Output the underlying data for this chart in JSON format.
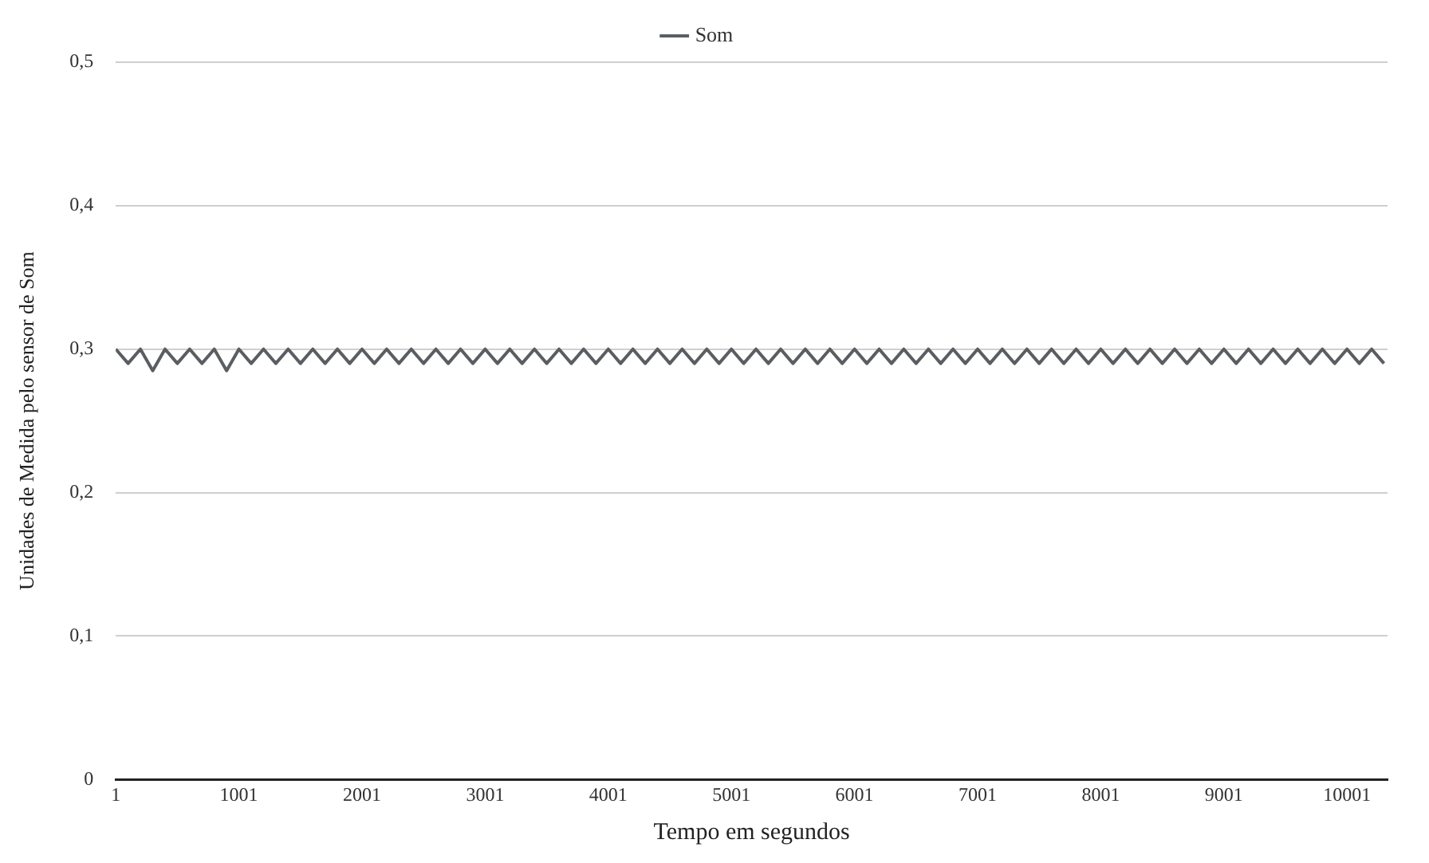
{
  "chart_data": {
    "type": "line",
    "xlabel": "Tempo em segundos",
    "ylabel": "Unidades de Medida pelo sensor de Som",
    "x": [
      1,
      101,
      201,
      301,
      401,
      501,
      601,
      701,
      801,
      901,
      1001,
      1101,
      1201,
      1301,
      1401,
      1501,
      1601,
      1701,
      1801,
      1901,
      2001,
      2101,
      2201,
      2301,
      2401,
      2501,
      2601,
      2701,
      2801,
      2901,
      3001,
      3101,
      3201,
      3301,
      3401,
      3501,
      3601,
      3701,
      3801,
      3901,
      4001,
      4101,
      4201,
      4301,
      4401,
      4501,
      4601,
      4701,
      4801,
      4901,
      5001,
      5101,
      5201,
      5301,
      5401,
      5501,
      5601,
      5701,
      5801,
      5901,
      6001,
      6101,
      6201,
      6301,
      6401,
      6501,
      6601,
      6701,
      6801,
      6901,
      7001,
      7101,
      7201,
      7301,
      7401,
      7501,
      7601,
      7701,
      7801,
      7901,
      8001,
      8101,
      8201,
      8301,
      8401,
      8501,
      8601,
      8701,
      8801,
      8901,
      9001,
      9101,
      9201,
      9301,
      9401,
      9501,
      9601,
      9701,
      9801,
      9901,
      10001,
      10101,
      10201,
      10301
    ],
    "series": [
      {
        "name": "Som",
        "color": "#5a5e63",
        "values": [
          0.3,
          0.29,
          0.3,
          0.285,
          0.3,
          0.29,
          0.3,
          0.29,
          0.3,
          0.285,
          0.3,
          0.29,
          0.3,
          0.29,
          0.3,
          0.29,
          0.3,
          0.29,
          0.3,
          0.29,
          0.3,
          0.29,
          0.3,
          0.29,
          0.3,
          0.29,
          0.3,
          0.29,
          0.3,
          0.29,
          0.3,
          0.29,
          0.3,
          0.29,
          0.3,
          0.29,
          0.3,
          0.29,
          0.3,
          0.29,
          0.3,
          0.29,
          0.3,
          0.29,
          0.3,
          0.29,
          0.3,
          0.29,
          0.3,
          0.29,
          0.3,
          0.29,
          0.3,
          0.29,
          0.3,
          0.29,
          0.3,
          0.29,
          0.3,
          0.29,
          0.3,
          0.29,
          0.3,
          0.29,
          0.3,
          0.29,
          0.3,
          0.29,
          0.3,
          0.29,
          0.3,
          0.29,
          0.3,
          0.29,
          0.3,
          0.29,
          0.3,
          0.29,
          0.3,
          0.29,
          0.3,
          0.29,
          0.3,
          0.29,
          0.3,
          0.29,
          0.3,
          0.29,
          0.3,
          0.29,
          0.3,
          0.29,
          0.3,
          0.29,
          0.3,
          0.29,
          0.3,
          0.29,
          0.3,
          0.29,
          0.3,
          0.29,
          0.3,
          0.29
        ]
      }
    ],
    "xlim": [
      1,
      10330
    ],
    "xticks": [
      1,
      1001,
      2001,
      3001,
      4001,
      5001,
      6001,
      7001,
      8001,
      9001,
      10001
    ],
    "ylim": [
      0,
      0.5
    ],
    "yticks": [
      {
        "value": 0,
        "label": "0"
      },
      {
        "value": 0.1,
        "label": "0,1"
      },
      {
        "value": 0.2,
        "label": "0,2"
      },
      {
        "value": 0.3,
        "label": "0,3"
      },
      {
        "value": 0.4,
        "label": "0,4"
      },
      {
        "value": 0.5,
        "label": "0,5"
      }
    ],
    "grid": "y",
    "legend": "top",
    "marker": "none",
    "line_style": "solid"
  }
}
